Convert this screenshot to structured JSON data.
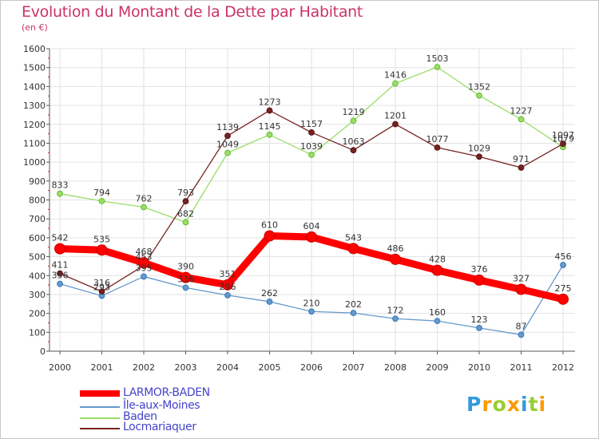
{
  "header": {
    "title": "Evolution du Montant de la Dette par Habitant",
    "subtitle": "(en €)"
  },
  "chart_data": {
    "type": "line",
    "x": [
      "2000",
      "2001",
      "2002",
      "2003",
      "2004",
      "2005",
      "2006",
      "2007",
      "2008",
      "2009",
      "2010",
      "2011",
      "2012"
    ],
    "ylim": [
      0,
      1600
    ],
    "yticks": [
      0,
      100,
      200,
      300,
      400,
      500,
      600,
      700,
      800,
      900,
      1000,
      1100,
      1200,
      1300,
      1400,
      1500,
      1600
    ],
    "grid": true,
    "legend_position": "bottom-left",
    "series": [
      {
        "name": "LARMOR-BADEN",
        "color": "#ff0000",
        "values": [
          542,
          535,
          468,
          390,
          351,
          610,
          604,
          543,
          486,
          428,
          376,
          327,
          275
        ]
      },
      {
        "name": "Île-aux-Moines",
        "color": "#6699cc",
        "values": [
          356,
          293,
          395,
          336,
          296,
          262,
          210,
          202,
          172,
          160,
          123,
          87,
          456
        ]
      },
      {
        "name": "Baden",
        "color": "#99dd66",
        "values": [
          833,
          794,
          762,
          682,
          1049,
          1145,
          1039,
          1219,
          1416,
          1503,
          1352,
          1227,
          1079
        ]
      },
      {
        "name": "Locmariaquer",
        "color": "#772222",
        "values": [
          411,
          316,
          453,
          793,
          1139,
          1273,
          1157,
          1063,
          1201,
          1077,
          1029,
          971,
          1097
        ]
      }
    ]
  },
  "logo": {
    "letters": [
      "P",
      "r",
      "o",
      "x",
      "i",
      "t",
      "i"
    ],
    "colors": [
      "#3399dd",
      "#ff9900",
      "#99cc33",
      "#ff9900",
      "#3399dd",
      "#99cc33",
      "#ff9900"
    ]
  }
}
